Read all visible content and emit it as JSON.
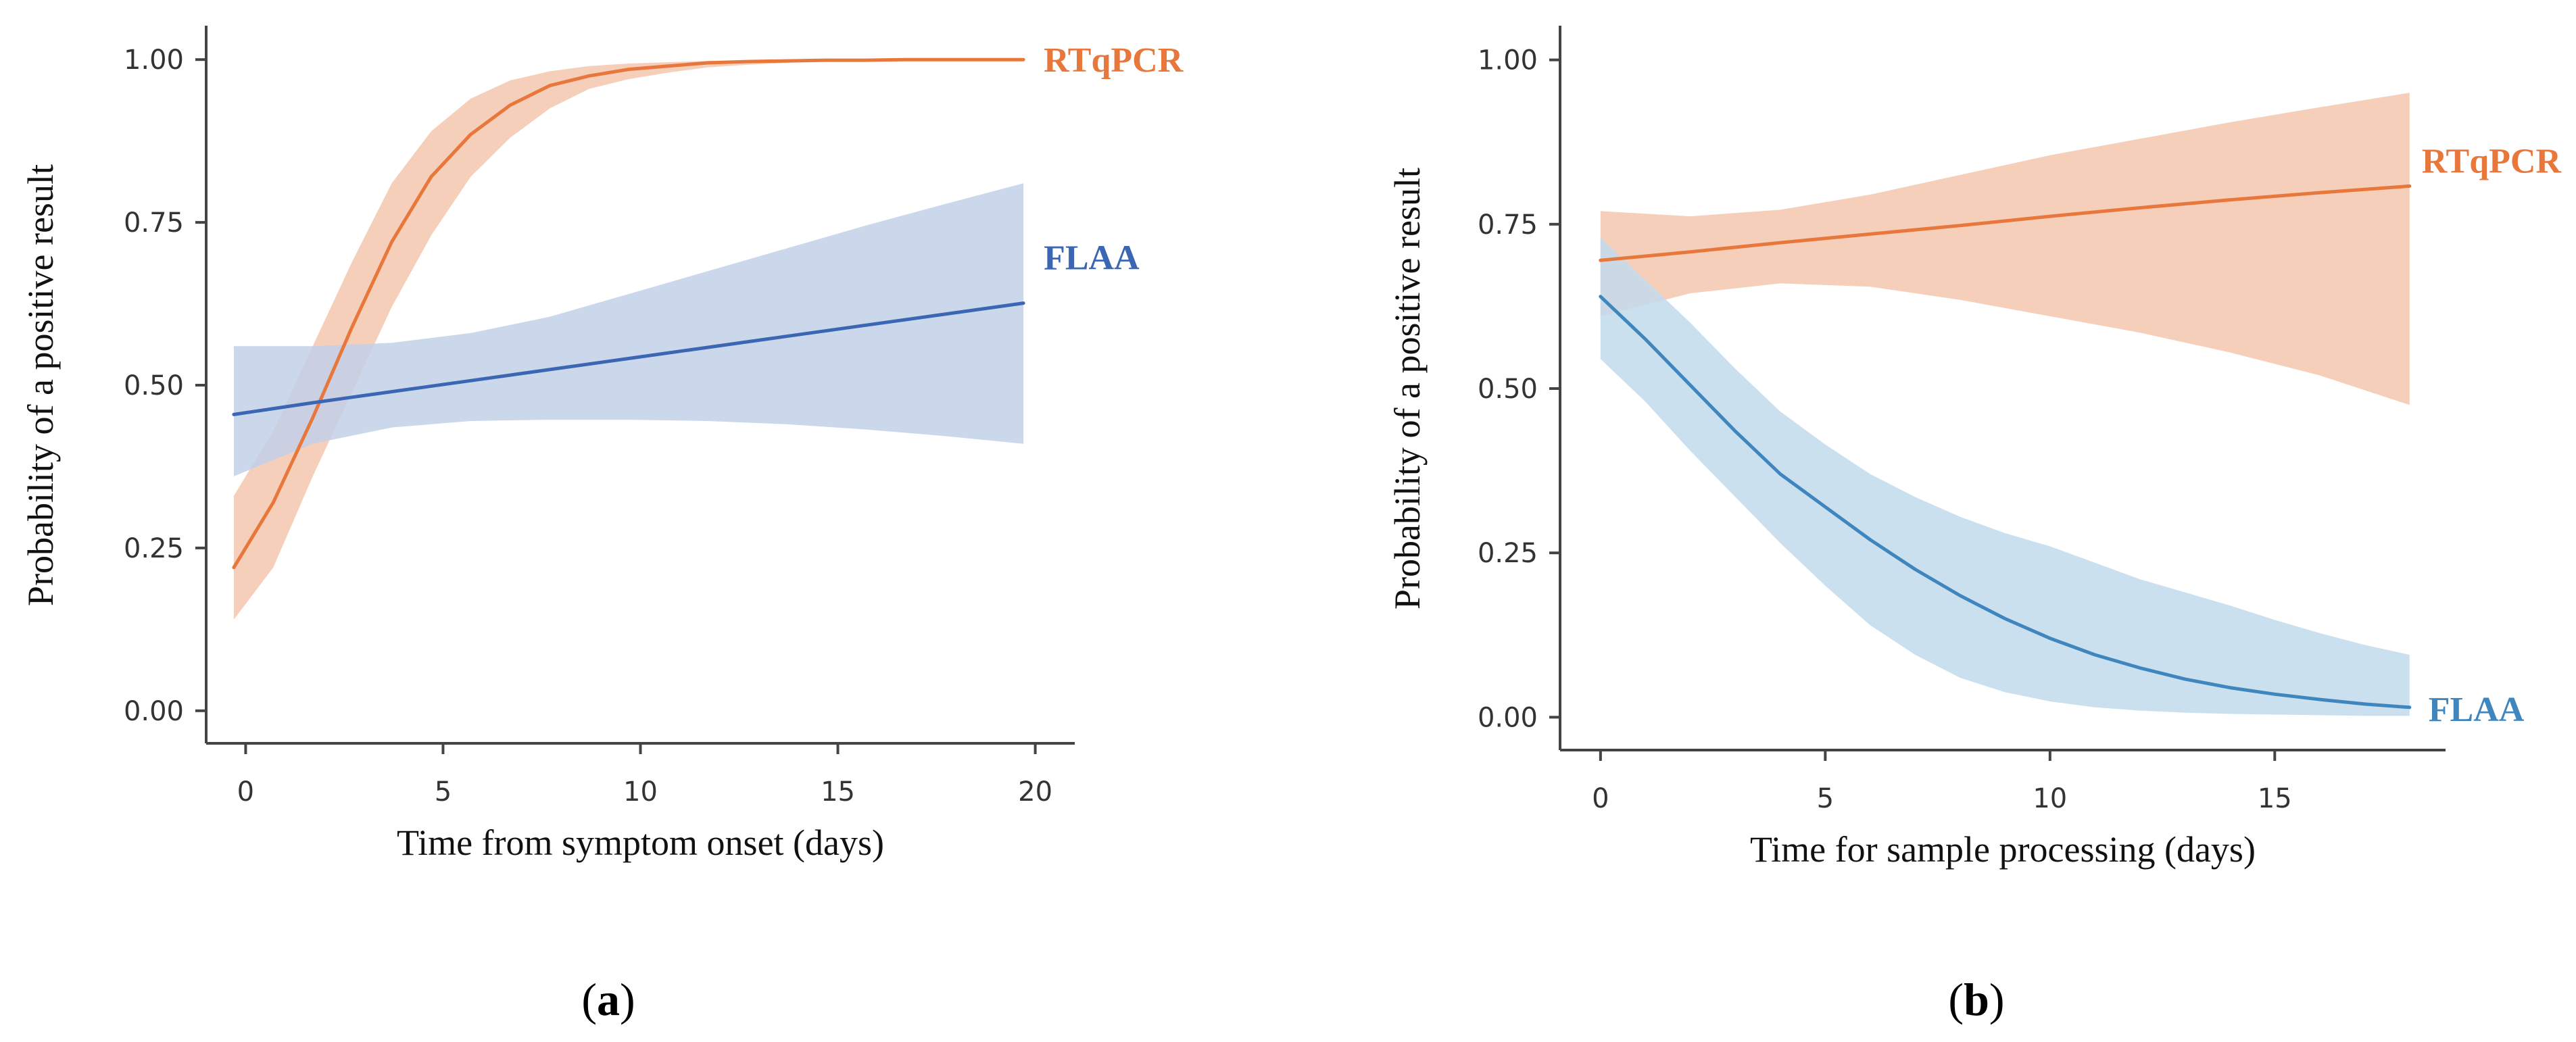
{
  "colors": {
    "rtqpcr_line": "#E8773C",
    "rtqpcr_band": "#F5C7AE",
    "flaa_line_a": "#3A66B4",
    "flaa_band_a": "#C2D0E8",
    "flaa_line_b": "#3F86BE",
    "flaa_band_b": "#C2DAEC",
    "axis": "#444444"
  },
  "chart_data": [
    {
      "panel": "a",
      "panel_label": "a",
      "type": "line",
      "title": "",
      "xlabel": "Time from symptom onset (days)",
      "ylabel": "Probability of a positive result",
      "xlim": [
        -1,
        21
      ],
      "ylim": [
        -0.05,
        1.05
      ],
      "xticks": [
        0,
        5,
        10,
        15,
        20
      ],
      "xtick_labels": [
        "0",
        "5",
        "10",
        "15",
        "20"
      ],
      "yticks": [
        0,
        0.25,
        0.5,
        0.75,
        1.0
      ],
      "ytick_labels": [
        "0.00",
        "0.25",
        "0.50",
        "0.75",
        "1.00"
      ],
      "grid": false,
      "legend": "direct labels at line ends",
      "series": [
        {
          "name": "RTqPCR",
          "label": "RTqPCR",
          "color_key": "rtqpcr",
          "x": [
            -0.3,
            0.7,
            1.7,
            2.7,
            3.7,
            4.7,
            5.7,
            6.7,
            7.7,
            8.7,
            9.7,
            10.7,
            11.7,
            12.7,
            13.7,
            14.7,
            15.7,
            16.7,
            17.7,
            18.7,
            19.7
          ],
          "y": [
            0.22,
            0.32,
            0.45,
            0.59,
            0.72,
            0.82,
            0.885,
            0.93,
            0.96,
            0.975,
            0.985,
            0.99,
            0.995,
            0.997,
            0.998,
            0.999,
            0.999,
            1.0,
            1.0,
            1.0,
            1.0
          ],
          "lower": [
            0.14,
            0.22,
            0.36,
            0.49,
            0.62,
            0.73,
            0.82,
            0.88,
            0.925,
            0.955,
            0.97,
            0.98,
            0.988,
            0.992,
            0.995,
            0.997,
            0.998,
            0.999,
            0.999,
            1.0,
            1.0
          ],
          "upper": [
            0.33,
            0.43,
            0.56,
            0.69,
            0.81,
            0.89,
            0.94,
            0.968,
            0.982,
            0.99,
            0.994,
            0.996,
            0.998,
            0.999,
            0.999,
            1.0,
            1.0,
            1.0,
            1.0,
            1.0,
            1.0
          ]
        },
        {
          "name": "FLAA",
          "label": "FLAA",
          "color_key": "flaa_a",
          "x": [
            -0.3,
            1.7,
            3.7,
            5.7,
            7.7,
            9.7,
            11.7,
            13.7,
            15.7,
            17.7,
            19.7
          ],
          "y": [
            0.455,
            0.473,
            0.49,
            0.507,
            0.524,
            0.541,
            0.558,
            0.575,
            0.592,
            0.609,
            0.626
          ],
          "lower": [
            0.36,
            0.41,
            0.435,
            0.445,
            0.447,
            0.447,
            0.445,
            0.44,
            0.432,
            0.422,
            0.41
          ],
          "upper": [
            0.56,
            0.56,
            0.565,
            0.58,
            0.605,
            0.64,
            0.675,
            0.71,
            0.745,
            0.778,
            0.81
          ]
        }
      ]
    },
    {
      "panel": "b",
      "panel_label": "b",
      "type": "line",
      "title": "",
      "xlabel": "Time for sample processing (days)",
      "ylabel": "Probability of a positive result",
      "xlim": [
        -0.9,
        18.8
      ],
      "ylim": [
        -0.05,
        1.05
      ],
      "xticks": [
        0,
        5,
        10,
        15
      ],
      "xtick_labels": [
        "0",
        "5",
        "10",
        "15"
      ],
      "yticks": [
        0,
        0.25,
        0.5,
        0.75,
        1.0
      ],
      "ytick_labels": [
        "0.00",
        "0.25",
        "0.50",
        "0.75",
        "1.00"
      ],
      "grid": false,
      "legend": "direct labels at line ends",
      "series": [
        {
          "name": "RTqPCR",
          "label": "RTqPCR",
          "color_key": "rtqpcr",
          "x": [
            0,
            2,
            4,
            6,
            8,
            10,
            12,
            14,
            16,
            18
          ],
          "y": [
            0.695,
            0.708,
            0.722,
            0.735,
            0.748,
            0.762,
            0.775,
            0.787,
            0.798,
            0.808
          ],
          "lower": [
            0.61,
            0.645,
            0.66,
            0.655,
            0.635,
            0.61,
            0.585,
            0.555,
            0.52,
            0.475
          ],
          "upper": [
            0.77,
            0.762,
            0.772,
            0.795,
            0.825,
            0.855,
            0.88,
            0.905,
            0.928,
            0.95
          ]
        },
        {
          "name": "FLAA",
          "label": "FLAA",
          "color_key": "flaa_b",
          "x": [
            0,
            1,
            2,
            3,
            4,
            5,
            6,
            7,
            8,
            9,
            10,
            11,
            12,
            13,
            14,
            15,
            16,
            17,
            18
          ],
          "y": [
            0.64,
            0.575,
            0.505,
            0.435,
            0.37,
            0.32,
            0.27,
            0.225,
            0.185,
            0.15,
            0.12,
            0.095,
            0.075,
            0.058,
            0.045,
            0.035,
            0.027,
            0.02,
            0.015
          ],
          "lower": [
            0.545,
            0.48,
            0.405,
            0.335,
            0.265,
            0.2,
            0.14,
            0.095,
            0.06,
            0.038,
            0.024,
            0.015,
            0.01,
            0.007,
            0.005,
            0.004,
            0.003,
            0.002,
            0.002
          ],
          "upper": [
            0.73,
            0.665,
            0.6,
            0.53,
            0.465,
            0.415,
            0.37,
            0.335,
            0.305,
            0.28,
            0.26,
            0.235,
            0.21,
            0.19,
            0.17,
            0.148,
            0.128,
            0.11,
            0.095
          ]
        }
      ]
    }
  ]
}
